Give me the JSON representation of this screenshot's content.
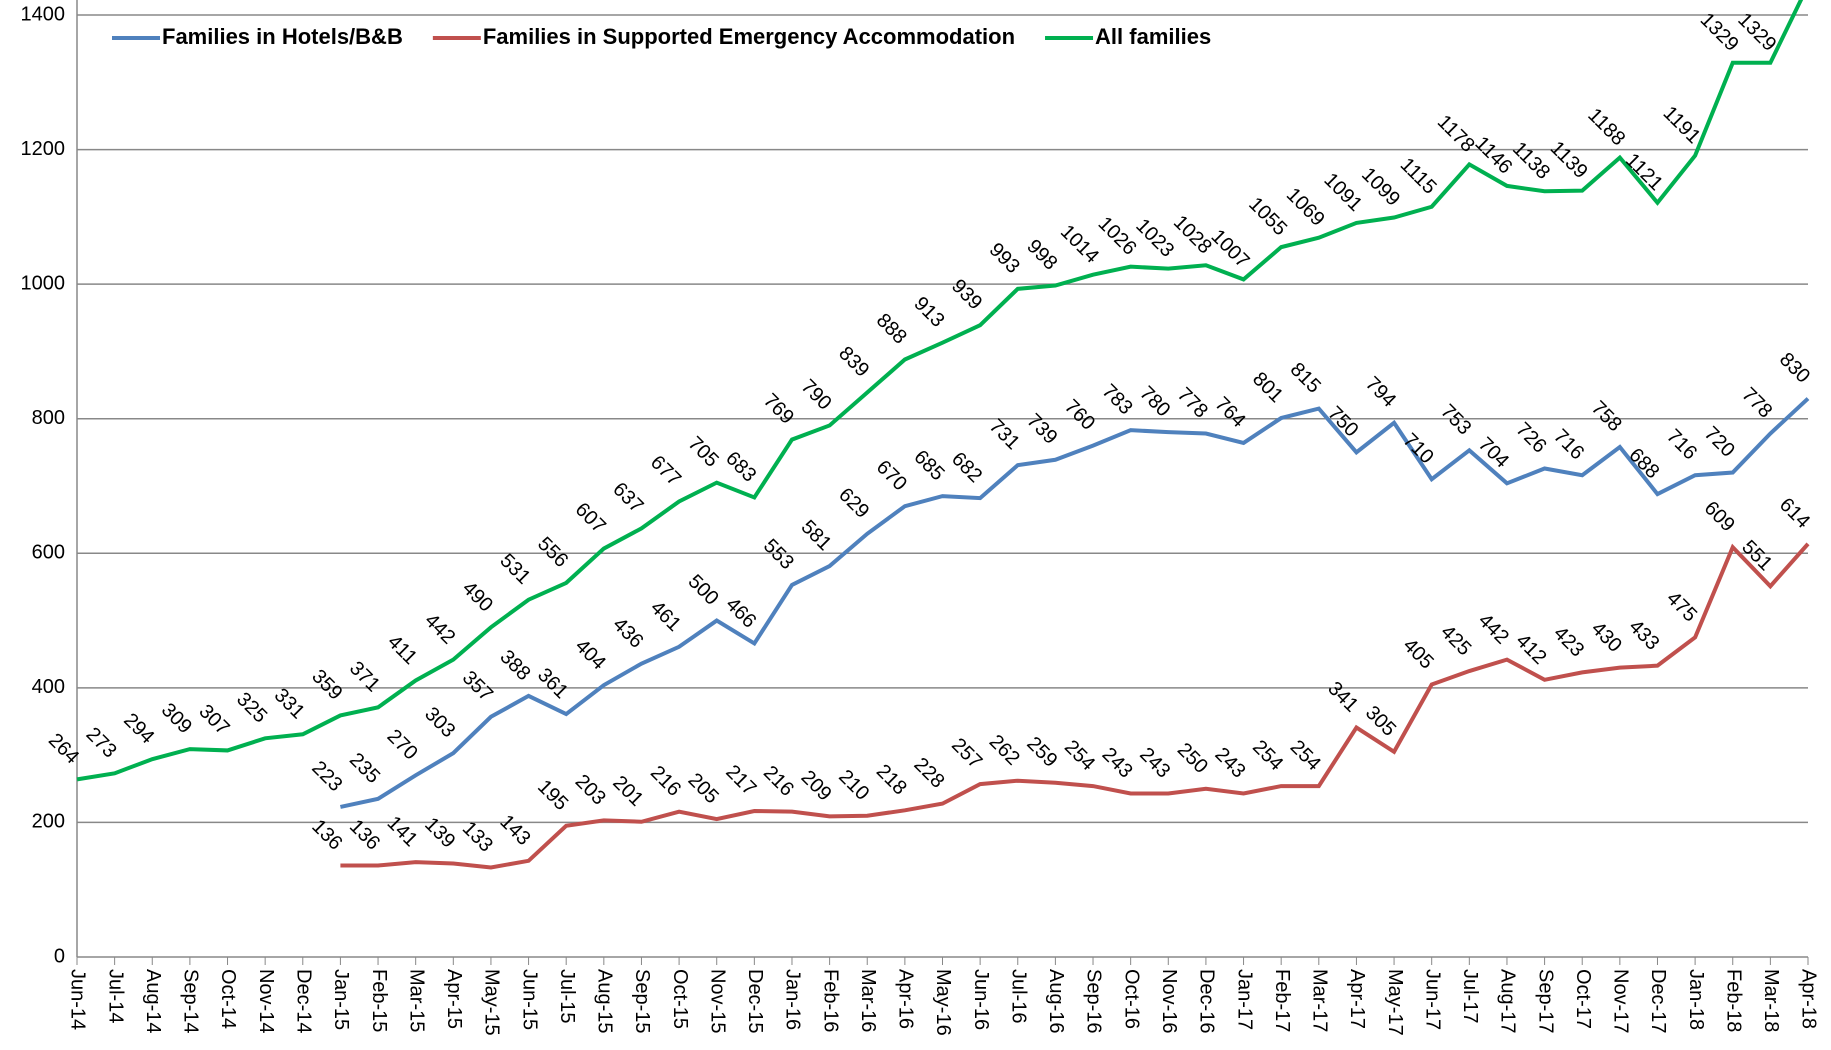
{
  "chart_data": {
    "type": "line",
    "categories": [
      "Jun-14",
      "Jul-14",
      "Aug-14",
      "Sep-14",
      "Oct-14",
      "Nov-14",
      "Dec-14",
      "Jan-15",
      "Feb-15",
      "Mar-15",
      "Apr-15",
      "May-15",
      "Jun-15",
      "Jul-15",
      "Aug-15",
      "Sep-15",
      "Oct-15",
      "Nov-15",
      "Dec-15",
      "Jan-16",
      "Feb-16",
      "Mar-16",
      "Apr-16",
      "May-16",
      "Jun-16",
      "Jul-16",
      "Aug-16",
      "Sep-16",
      "Oct-16",
      "Nov-16",
      "Dec-16",
      "Jan-17",
      "Feb-17",
      "Mar-17",
      "Apr-17",
      "May-17",
      "Jun-17",
      "Jul-17",
      "Aug-17",
      "Sep-17",
      "Oct-17",
      "Nov-17",
      "Dec-17",
      "Jan-18",
      "Feb-18",
      "Mar-18",
      "Apr-18"
    ],
    "series": [
      {
        "name": "Families in Hotels/B&B",
        "color": "#4f81bd",
        "values": [
          null,
          null,
          null,
          null,
          null,
          null,
          null,
          223,
          235,
          270,
          303,
          357,
          388,
          361,
          404,
          436,
          461,
          500,
          466,
          553,
          581,
          629,
          670,
          685,
          682,
          731,
          739,
          760,
          783,
          780,
          778,
          764,
          801,
          815,
          750,
          794,
          710,
          753,
          704,
          726,
          716,
          758,
          688,
          716,
          720,
          778,
          830
        ]
      },
      {
        "name": "Families in Supported Emergency Accommodation",
        "color": "#c0504d",
        "values": [
          null,
          null,
          null,
          null,
          null,
          null,
          null,
          136,
          136,
          141,
          139,
          133,
          143,
          195,
          203,
          201,
          216,
          205,
          217,
          216,
          209,
          210,
          218,
          228,
          257,
          262,
          259,
          254,
          243,
          243,
          250,
          243,
          254,
          254,
          341,
          305,
          405,
          425,
          442,
          412,
          423,
          430,
          433,
          475,
          609,
          551,
          614
        ]
      },
      {
        "name": "All families",
        "color": "#00b050",
        "values": [
          264,
          273,
          294,
          309,
          307,
          325,
          331,
          359,
          371,
          411,
          442,
          490,
          531,
          556,
          607,
          637,
          677,
          705,
          683,
          769,
          790,
          839,
          888,
          913,
          939,
          993,
          998,
          1014,
          1026,
          1023,
          1028,
          1007,
          1055,
          1069,
          1091,
          1099,
          1115,
          1178,
          1146,
          1138,
          1139,
          1188,
          1121,
          1191,
          1329,
          1329,
          1444
        ]
      }
    ],
    "ylim": [
      0,
      1400
    ],
    "yticks": [
      0,
      200,
      400,
      600,
      800,
      1000,
      1200,
      1400
    ],
    "grid": true
  }
}
